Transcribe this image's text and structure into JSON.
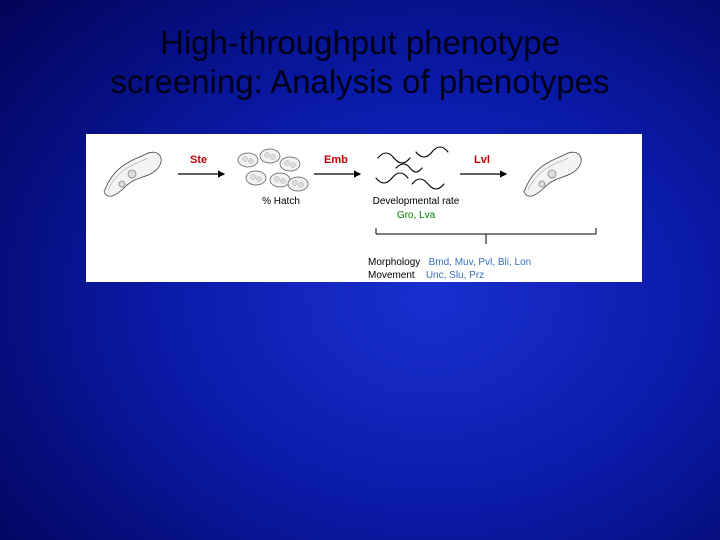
{
  "slide": {
    "title": "High-throughput phenotype\nscreening: Analysis of phenotypes",
    "background": {
      "gradient_center": "#1a2fd0",
      "gradient_mid": "#0a1aa8",
      "gradient_outer": "#020660",
      "gradient_edge": "#000128",
      "gradient_corner": "#000004"
    },
    "title_color": "#000018",
    "title_fontsize": 33
  },
  "diagram": {
    "type": "flowchart",
    "background_color": "#ffffff",
    "stroke_color": "#000000",
    "arrow_color": "#000000",
    "red": "#c00000",
    "green": "#008000",
    "blue": "#3a6ec0",
    "stages": [
      "adult_worm",
      "embryos",
      "larvae",
      "adult_worm"
    ],
    "arrows": [
      {
        "label": "Ste",
        "color": "#c00000"
      },
      {
        "label": "Emb",
        "color": "#c00000"
      },
      {
        "label": "Lvl",
        "color": "#c00000"
      }
    ],
    "sub_labels": {
      "hatch": "% Hatch",
      "dev_rate_line1": "Developmental rate",
      "dev_rate_line2": "Gro, Lva"
    },
    "bracket": true,
    "legend": {
      "morphology_label": "Morphology",
      "morphology_values": "Bmd, Muv, Pvl, Bli, Lon",
      "movement_label": "Movement",
      "movement_values": "Unc, Slu, Prz"
    }
  }
}
